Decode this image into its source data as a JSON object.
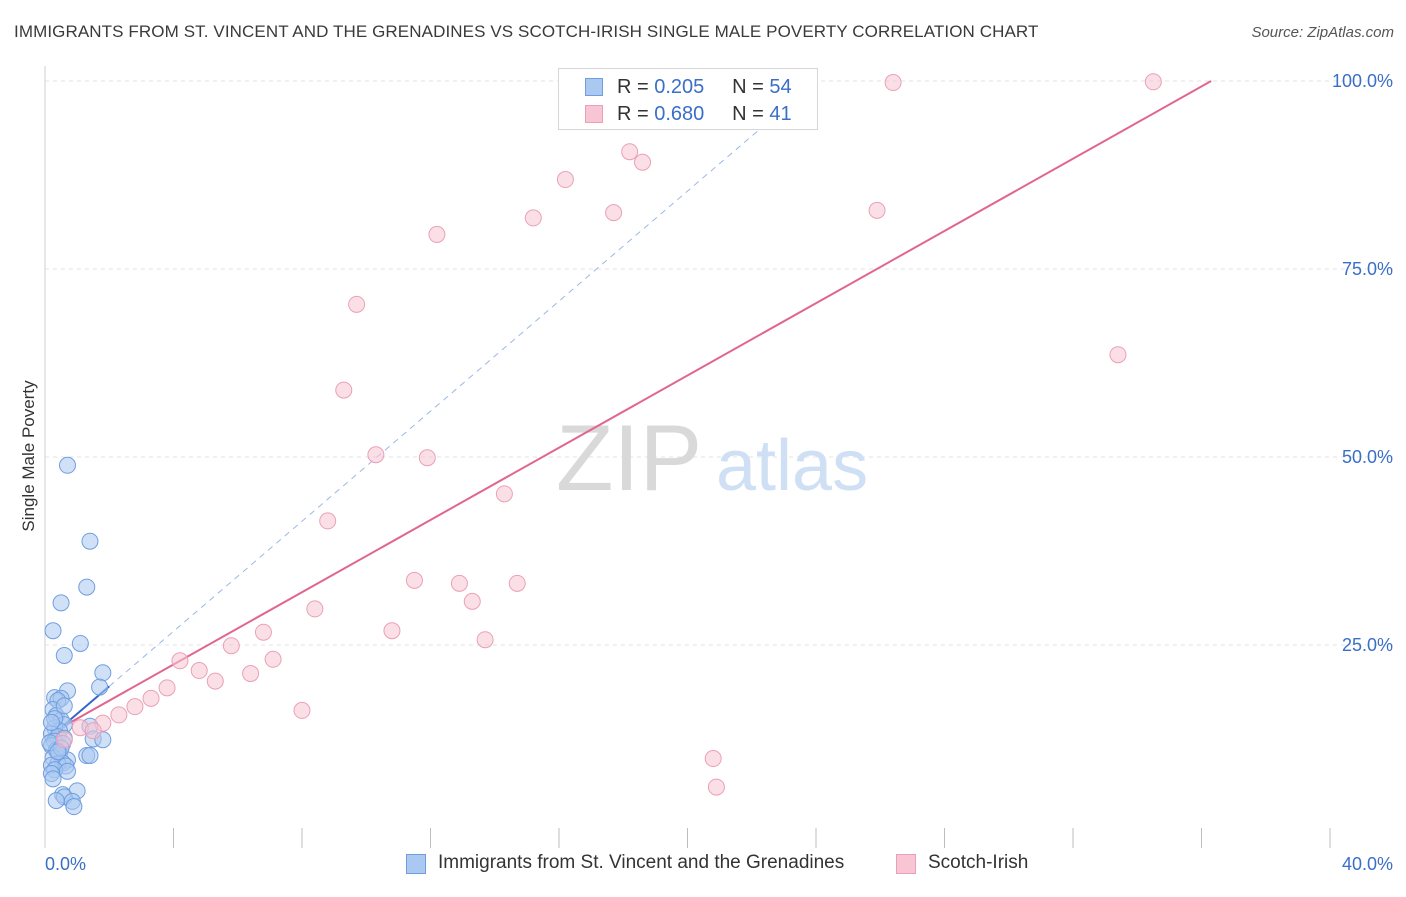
{
  "title": "IMMIGRANTS FROM ST. VINCENT AND THE GRENADINES VS SCOTCH-IRISH SINGLE MALE POVERTY CORRELATION CHART",
  "source": "Source: ZipAtlas.com",
  "watermark": {
    "zip": "ZIP",
    "atlas": "atlas"
  },
  "colors": {
    "blue_fill": "#aac8f0",
    "blue_stroke": "#6f9ee0",
    "blue_line": "#3366cc",
    "pink_fill": "#f8c5d4",
    "pink_stroke": "#eaa0b6",
    "pink_line": "#e06690",
    "tick_label": "#3a6fc7",
    "grid": "#e3e3e3"
  },
  "legend_top": {
    "rows": [
      {
        "r_label": "R =",
        "r_value": "0.205",
        "n_label": "N =",
        "n_value": "54"
      },
      {
        "r_label": "R =",
        "r_value": "0.680",
        "n_label": "N =",
        "n_value": "41"
      }
    ]
  },
  "legend_bottom": {
    "items": [
      "Immigrants from St. Vincent and the Grenadines",
      "Scotch-Irish"
    ]
  },
  "chart_data": {
    "type": "scatter",
    "title": "IMMIGRANTS FROM ST. VINCENT AND THE GRENADINES VS SCOTCH-IRISH SINGLE MALE POVERTY CORRELATION CHART",
    "xlabel": "",
    "ylabel": "Single Male Poverty",
    "xlim": [
      0,
      40
    ],
    "ylim": [
      -2,
      102
    ],
    "x_tick_labels": {
      "0": "0.0%",
      "40": "40.0%"
    },
    "y_ticks": [
      25,
      50,
      75,
      100
    ],
    "y_tick_labels": [
      "25.0%",
      "50.0%",
      "75.0%",
      "100.0%"
    ],
    "x_minor_ticks": [
      4,
      8,
      12,
      16,
      20,
      24,
      28,
      32,
      36,
      40
    ],
    "grid": true,
    "legend_position": "top-center",
    "series": [
      {
        "name": "Immigrants from St. Vincent and the Grenadines",
        "r": 0.205,
        "n": 54,
        "trend": {
          "x": [
            0,
            2
          ],
          "y": [
            12.2,
            19.5
          ],
          "style": "solid"
        },
        "trend_extended": {
          "x": [
            2,
            24
          ],
          "y": [
            19.5,
            100
          ],
          "style": "dashed"
        },
        "points": [
          {
            "x": 0.7,
            "y": 48.9
          },
          {
            "x": 1.4,
            "y": 38.8
          },
          {
            "x": 1.3,
            "y": 32.7
          },
          {
            "x": 0.5,
            "y": 30.6
          },
          {
            "x": 0.25,
            "y": 26.9
          },
          {
            "x": 1.1,
            "y": 25.2
          },
          {
            "x": 0.6,
            "y": 23.6
          },
          {
            "x": 1.8,
            "y": 21.3
          },
          {
            "x": 1.7,
            "y": 19.4
          },
          {
            "x": 0.7,
            "y": 18.9
          },
          {
            "x": 0.3,
            "y": 18.0
          },
          {
            "x": 0.5,
            "y": 17.9
          },
          {
            "x": 0.4,
            "y": 17.6
          },
          {
            "x": 0.25,
            "y": 16.4
          },
          {
            "x": 0.35,
            "y": 15.6
          },
          {
            "x": 0.5,
            "y": 15.0
          },
          {
            "x": 0.6,
            "y": 14.4
          },
          {
            "x": 0.3,
            "y": 14.0
          },
          {
            "x": 0.45,
            "y": 13.6
          },
          {
            "x": 1.4,
            "y": 14.2
          },
          {
            "x": 0.2,
            "y": 13.2
          },
          {
            "x": 0.4,
            "y": 12.8
          },
          {
            "x": 0.6,
            "y": 12.6
          },
          {
            "x": 1.5,
            "y": 12.5
          },
          {
            "x": 1.8,
            "y": 12.4
          },
          {
            "x": 0.3,
            "y": 12.2
          },
          {
            "x": 0.55,
            "y": 11.9
          },
          {
            "x": 0.2,
            "y": 11.6
          },
          {
            "x": 0.35,
            "y": 11.0
          },
          {
            "x": 0.45,
            "y": 10.6
          },
          {
            "x": 1.3,
            "y": 10.3
          },
          {
            "x": 1.4,
            "y": 10.3
          },
          {
            "x": 0.25,
            "y": 10.0
          },
          {
            "x": 0.7,
            "y": 9.7
          },
          {
            "x": 0.55,
            "y": 9.3
          },
          {
            "x": 0.4,
            "y": 9.2
          },
          {
            "x": 0.2,
            "y": 9.0
          },
          {
            "x": 0.65,
            "y": 8.9
          },
          {
            "x": 0.3,
            "y": 8.4
          },
          {
            "x": 0.7,
            "y": 8.2
          },
          {
            "x": 0.2,
            "y": 7.9
          },
          {
            "x": 0.25,
            "y": 7.2
          },
          {
            "x": 1.0,
            "y": 5.6
          },
          {
            "x": 0.55,
            "y": 5.1
          },
          {
            "x": 0.6,
            "y": 4.8
          },
          {
            "x": 0.35,
            "y": 4.3
          },
          {
            "x": 0.85,
            "y": 4.2
          },
          {
            "x": 0.9,
            "y": 3.5
          },
          {
            "x": 0.15,
            "y": 12.0
          },
          {
            "x": 0.5,
            "y": 11.3
          },
          {
            "x": 0.3,
            "y": 15.2
          },
          {
            "x": 0.6,
            "y": 16.9
          },
          {
            "x": 0.2,
            "y": 14.7
          },
          {
            "x": 0.4,
            "y": 10.8
          }
        ]
      },
      {
        "name": "Scotch-Irish",
        "r": 0.68,
        "n": 41,
        "trend": {
          "x": [
            0,
            36.3
          ],
          "y": [
            12.8,
            100
          ],
          "style": "solid"
        },
        "points": [
          {
            "x": 26.4,
            "y": 99.8
          },
          {
            "x": 34.5,
            "y": 99.9
          },
          {
            "x": 18.2,
            "y": 90.6
          },
          {
            "x": 18.6,
            "y": 89.2
          },
          {
            "x": 16.2,
            "y": 86.9
          },
          {
            "x": 15.2,
            "y": 81.8
          },
          {
            "x": 17.7,
            "y": 82.5
          },
          {
            "x": 25.9,
            "y": 82.8
          },
          {
            "x": 12.2,
            "y": 79.6
          },
          {
            "x": 9.7,
            "y": 70.3
          },
          {
            "x": 33.4,
            "y": 63.6
          },
          {
            "x": 9.3,
            "y": 58.9
          },
          {
            "x": 10.3,
            "y": 50.3
          },
          {
            "x": 11.9,
            "y": 49.9
          },
          {
            "x": 14.3,
            "y": 45.1
          },
          {
            "x": 8.8,
            "y": 41.5
          },
          {
            "x": 11.5,
            "y": 33.6
          },
          {
            "x": 12.9,
            "y": 33.2
          },
          {
            "x": 14.7,
            "y": 33.2
          },
          {
            "x": 13.3,
            "y": 30.8
          },
          {
            "x": 8.4,
            "y": 29.8
          },
          {
            "x": 10.8,
            "y": 26.9
          },
          {
            "x": 6.8,
            "y": 26.7
          },
          {
            "x": 13.7,
            "y": 25.7
          },
          {
            "x": 5.8,
            "y": 24.9
          },
          {
            "x": 4.2,
            "y": 22.9
          },
          {
            "x": 7.1,
            "y": 23.1
          },
          {
            "x": 4.8,
            "y": 21.6
          },
          {
            "x": 6.4,
            "y": 21.2
          },
          {
            "x": 5.3,
            "y": 20.2
          },
          {
            "x": 3.8,
            "y": 19.3
          },
          {
            "x": 3.3,
            "y": 17.9
          },
          {
            "x": 2.8,
            "y": 16.8
          },
          {
            "x": 2.3,
            "y": 15.7
          },
          {
            "x": 8.0,
            "y": 16.3
          },
          {
            "x": 1.8,
            "y": 14.6
          },
          {
            "x": 1.1,
            "y": 14.0
          },
          {
            "x": 1.5,
            "y": 13.6
          },
          {
            "x": 0.6,
            "y": 12.4
          },
          {
            "x": 20.8,
            "y": 9.9
          },
          {
            "x": 20.9,
            "y": 6.1
          }
        ]
      }
    ]
  }
}
